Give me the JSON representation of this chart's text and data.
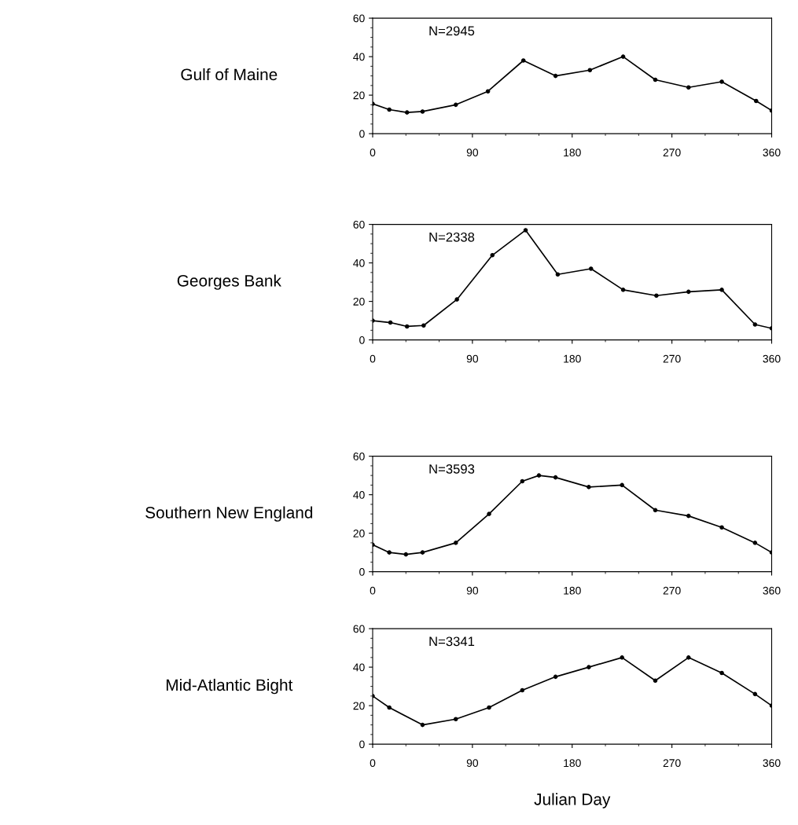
{
  "chart_data": [
    {
      "type": "line",
      "title": "Gulf of Maine",
      "annotations": [
        "N=2945"
      ],
      "marker": "circle",
      "line_style": "solid",
      "grid": false,
      "legend": false,
      "tick_labels": "xy",
      "series": [
        {
          "color": "#000000",
          "x": [
            0,
            15,
            31,
            45,
            75,
            104,
            136,
            165,
            196,
            226,
            255,
            285,
            315,
            346,
            360
          ],
          "values": [
            15.5,
            12.5,
            11,
            11.5,
            15,
            22,
            38,
            30,
            33,
            40,
            28,
            24,
            27,
            17,
            12
          ]
        }
      ],
      "xlim": [
        0,
        360
      ],
      "xticks": [
        0,
        90,
        180,
        270,
        360
      ],
      "ylim": [
        0,
        60
      ],
      "yticks": [
        0,
        20,
        40,
        60
      ]
    },
    {
      "type": "line",
      "title": "Georges Bank",
      "annotations": [
        "N=2338"
      ],
      "marker": "circle",
      "line_style": "solid",
      "grid": false,
      "legend": false,
      "series": [
        {
          "color": "#000000",
          "x": [
            0,
            16,
            31,
            46,
            76,
            108,
            138,
            167,
            197,
            226,
            256,
            285,
            315,
            345,
            360
          ],
          "values": [
            10,
            9,
            7,
            7.5,
            21,
            44,
            57,
            34,
            37,
            26,
            23,
            25,
            26,
            8,
            6
          ]
        }
      ],
      "xlim": [
        0,
        360
      ],
      "xticks": [
        0,
        90,
        180,
        270,
        360
      ],
      "ylim": [
        0,
        60
      ],
      "yticks": [
        0,
        20,
        40,
        60
      ]
    },
    {
      "type": "line",
      "title": "Southern New England",
      "annotations": [
        "N=3593"
      ],
      "marker": "circle",
      "line_style": "solid",
      "grid": false,
      "legend": false,
      "series": [
        {
          "color": "#000000",
          "x": [
            0,
            15,
            30,
            45,
            75,
            105,
            135,
            150,
            165,
            195,
            225,
            255,
            285,
            315,
            345,
            360
          ],
          "values": [
            14,
            10,
            9,
            10,
            15,
            30,
            47,
            50,
            49,
            44,
            45,
            32,
            29,
            23,
            15,
            10
          ]
        }
      ],
      "xlim": [
        0,
        360
      ],
      "xticks": [
        0,
        90,
        180,
        270,
        360
      ],
      "ylim": [
        0,
        60
      ],
      "yticks": [
        0,
        20,
        40,
        60
      ]
    },
    {
      "type": "line",
      "title": "Mid-Atlantic Bight",
      "xlabel": "Julian Day",
      "annotations": [
        "N=3341"
      ],
      "marker": "circle",
      "line_style": "solid",
      "grid": false,
      "legend": false,
      "series": [
        {
          "color": "#000000",
          "x": [
            0,
            15,
            45,
            75,
            105,
            135,
            165,
            195,
            225,
            255,
            285,
            315,
            345,
            360
          ],
          "values": [
            25,
            19,
            10,
            13,
            19,
            28,
            35,
            40,
            45,
            33,
            45,
            37,
            26,
            20
          ]
        }
      ],
      "xlim": [
        0,
        360
      ],
      "xticks": [
        0,
        90,
        180,
        270,
        360
      ],
      "ylim": [
        0,
        60
      ],
      "yticks": [
        0,
        20,
        40,
        60
      ]
    }
  ]
}
